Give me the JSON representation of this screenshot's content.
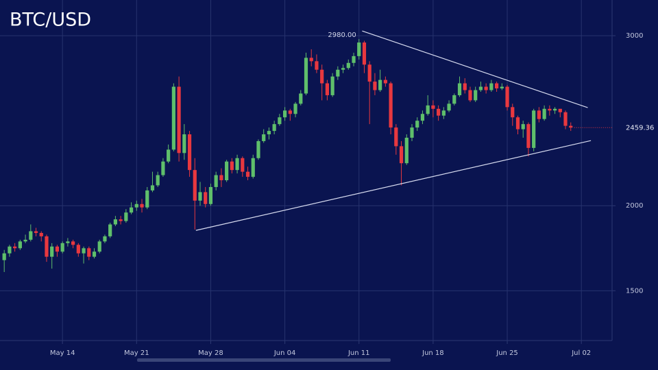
{
  "chart_data": {
    "type": "candlestick",
    "title": "BTC/USD",
    "x": [
      -5.5,
      -5,
      -4.5,
      -4,
      -3.5,
      -3,
      -2.5,
      -2,
      -1.5,
      -1,
      -0.5,
      0,
      0.5,
      1,
      1.5,
      2,
      2.5,
      3,
      3.5,
      4,
      4.5,
      5,
      5.5,
      6,
      6.5,
      7,
      7.5,
      8,
      8.5,
      9,
      9.5,
      10,
      10.5,
      11,
      11.5,
      12,
      12.5,
      13,
      13.5,
      14,
      14.5,
      15,
      15.5,
      16,
      16.5,
      17,
      17.5,
      18,
      18.5,
      19,
      19.5,
      20,
      20.5,
      21,
      21.5,
      22,
      22.5,
      23,
      23.5,
      24,
      24.5,
      25,
      25.5,
      26,
      26.5,
      27,
      27.5,
      28,
      28.5,
      29,
      29.5,
      30,
      30.5,
      31,
      31.5,
      32,
      32.5,
      33,
      33.5,
      34,
      34.5,
      35,
      35.5,
      36,
      36.5,
      37,
      37.5,
      38,
      38.5,
      39,
      39.5,
      40,
      40.5,
      41,
      41.5,
      42,
      42.5,
      43,
      43.5,
      44,
      44.5,
      45,
      45.5,
      46,
      46.5,
      47,
      47.5,
      48
    ],
    "open": [
      1680,
      1720,
      1760,
      1750,
      1790,
      1800,
      1850,
      1840,
      1820,
      1700,
      1760,
      1730,
      1780,
      1790,
      1770,
      1720,
      1750,
      1700,
      1730,
      1790,
      1820,
      1890,
      1920,
      1910,
      1960,
      1990,
      2010,
      1990,
      2090,
      2120,
      2180,
      2260,
      2330,
      2700,
      2310,
      2420,
      2210,
      2030,
      2080,
      2010,
      2110,
      2180,
      2150,
      2260,
      2210,
      2280,
      2200,
      2170,
      2280,
      2380,
      2420,
      2440,
      2480,
      2520,
      2560,
      2540,
      2600,
      2660,
      2870,
      2850,
      2800,
      2720,
      2650,
      2760,
      2800,
      2810,
      2840,
      2880,
      2960,
      2830,
      2730,
      2680,
      2740,
      2720,
      2460,
      2350,
      2250,
      2400,
      2460,
      2500,
      2540,
      2590,
      2570,
      2530,
      2560,
      2600,
      2650,
      2720,
      2680,
      2620,
      2680,
      2700,
      2680,
      2720,
      2690,
      2700,
      2580,
      2520,
      2450,
      2480,
      2340,
      2560,
      2510,
      2570,
      2560,
      2570,
      2550,
      2470
    ],
    "high": [
      1740,
      1770,
      1780,
      1800,
      1830,
      1890,
      1870,
      1850,
      1830,
      1780,
      1770,
      1790,
      1810,
      1800,
      1780,
      1760,
      1760,
      1750,
      1800,
      1830,
      1900,
      1940,
      1940,
      1980,
      2020,
      2030,
      2040,
      2110,
      2200,
      2200,
      2280,
      2360,
      2720,
      2760,
      2480,
      2440,
      2280,
      2140,
      2110,
      2130,
      2200,
      2220,
      2270,
      2280,
      2300,
      2290,
      2230,
      2300,
      2390,
      2450,
      2460,
      2500,
      2540,
      2580,
      2570,
      2610,
      2680,
      2900,
      2920,
      2890,
      2830,
      2740,
      2780,
      2820,
      2830,
      2860,
      2900,
      2980,
      2970,
      2850,
      2780,
      2800,
      2760,
      2730,
      2480,
      2380,
      2420,
      2480,
      2520,
      2560,
      2650,
      2620,
      2590,
      2580,
      2620,
      2660,
      2760,
      2750,
      2700,
      2700,
      2730,
      2720,
      2740,
      2730,
      2720,
      2710,
      2600,
      2530,
      2500,
      2490,
      2570,
      2580,
      2590,
      2590,
      2580,
      2570,
      2560,
      2490
    ],
    "low": [
      1610,
      1700,
      1730,
      1740,
      1780,
      1790,
      1820,
      1790,
      1670,
      1630,
      1700,
      1720,
      1760,
      1750,
      1700,
      1660,
      1680,
      1690,
      1720,
      1780,
      1810,
      1880,
      1890,
      1900,
      1950,
      1970,
      1960,
      1980,
      2080,
      2110,
      2170,
      2250,
      2320,
      2260,
      2270,
      2170,
      1860,
      2000,
      1990,
      2000,
      2090,
      2110,
      2140,
      2190,
      2190,
      2170,
      2150,
      2160,
      2270,
      2370,
      2390,
      2420,
      2470,
      2500,
      2500,
      2520,
      2590,
      2650,
      2820,
      2780,
      2620,
      2620,
      2640,
      2740,
      2780,
      2800,
      2820,
      2860,
      2780,
      2480,
      2650,
      2670,
      2700,
      2420,
      2300,
      2120,
      2240,
      2380,
      2440,
      2480,
      2530,
      2520,
      2500,
      2510,
      2550,
      2590,
      2640,
      2660,
      2610,
      2610,
      2670,
      2660,
      2670,
      2670,
      2680,
      2560,
      2470,
      2420,
      2400,
      2290,
      2320,
      2490,
      2500,
      2530,
      2540,
      2520,
      2450,
      2440
    ],
    "close": [
      1720,
      1760,
      1750,
      1790,
      1800,
      1850,
      1840,
      1820,
      1700,
      1760,
      1730,
      1780,
      1790,
      1770,
      1720,
      1750,
      1700,
      1730,
      1790,
      1820,
      1890,
      1920,
      1910,
      1960,
      1990,
      2010,
      1990,
      2090,
      2120,
      2180,
      2260,
      2330,
      2700,
      2310,
      2420,
      2210,
      2030,
      2080,
      2010,
      2110,
      2180,
      2150,
      2260,
      2210,
      2280,
      2200,
      2170,
      2280,
      2380,
      2420,
      2440,
      2480,
      2520,
      2560,
      2540,
      2600,
      2660,
      2870,
      2850,
      2800,
      2720,
      2650,
      2760,
      2800,
      2810,
      2840,
      2880,
      2960,
      2830,
      2730,
      2680,
      2740,
      2720,
      2460,
      2350,
      2250,
      2400,
      2460,
      2500,
      2540,
      2590,
      2570,
      2530,
      2560,
      2600,
      2650,
      2720,
      2680,
      2620,
      2680,
      2700,
      2680,
      2720,
      2690,
      2700,
      2580,
      2520,
      2450,
      2480,
      2340,
      2560,
      2510,
      2570,
      2560,
      2570,
      2550,
      2470,
      2459.36
    ],
    "up_color": "#5fbf6b",
    "down_color": "#e8383f",
    "xlim": [
      -5.9,
      51.9
    ],
    "ylim": [
      1195,
      3210
    ],
    "xticks": [
      {
        "value": 0,
        "label": "May 14"
      },
      {
        "value": 7,
        "label": "May 21"
      },
      {
        "value": 14,
        "label": "May 28"
      },
      {
        "value": 21,
        "label": "Jun 04"
      },
      {
        "value": 28,
        "label": "Jun 11"
      },
      {
        "value": 35,
        "label": "Jun 18"
      },
      {
        "value": 42,
        "label": "Jun 25"
      },
      {
        "value": 49,
        "label": "Jul 02"
      }
    ],
    "yticks": [
      1500,
      2000,
      3000
    ],
    "grid": true,
    "trendlines": [
      {
        "x": [
          28.3,
          49.6
        ],
        "y": [
          3028,
          2577
        ],
        "color": "#d8dcf0"
      },
      {
        "x": [
          12.6,
          49.9
        ],
        "y": [
          1855,
          2383
        ],
        "color": "#d8dcf0"
      }
    ],
    "annotations": [
      {
        "text": "2980.00",
        "x": 28.0,
        "y": 2980
      }
    ]
  }
}
